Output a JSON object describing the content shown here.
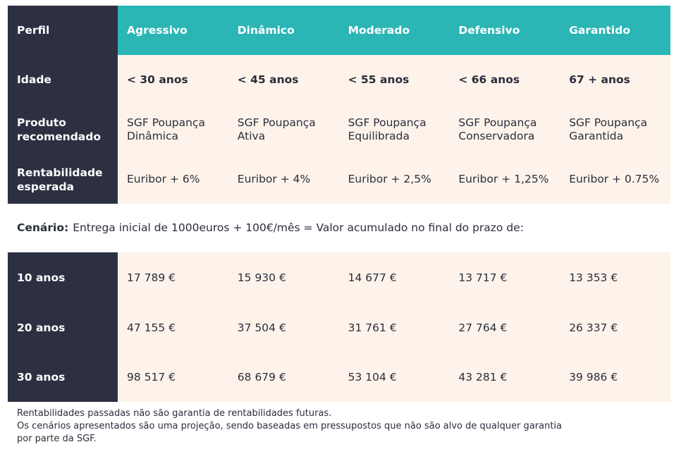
{
  "header": {
    "perfil": "Perfil",
    "profiles": [
      "Agressivo",
      "Dinâmico",
      "Moderado",
      "Defensivo",
      "Garantido"
    ]
  },
  "idade": {
    "label": "Idade",
    "values": [
      "< 30 anos",
      "< 45 anos",
      "< 55 anos",
      "< 66 anos",
      "67 + anos"
    ]
  },
  "produto": {
    "label_line1": "Produto",
    "label_line2": "recomendado",
    "values": [
      [
        "SGF Poupança",
        "Dinâmica"
      ],
      [
        "SGF Poupança",
        "Ativa"
      ],
      [
        "SGF Poupança",
        "Equilibrada"
      ],
      [
        "SGF Poupança",
        "Conservadora"
      ],
      [
        "SGF Poupança",
        "Garantida"
      ]
    ]
  },
  "rentabilidade": {
    "label_line1": "Rentabilidade",
    "label_line2": "esperada",
    "values": [
      "Euribor + 6%",
      "Euribor + 4%",
      "Euribor + 2,5%",
      "Euribor + 1,25%",
      "Euribor + 0.75%"
    ]
  },
  "scenario": {
    "label": "Cenário:",
    "text": "Entrega inicial de 1000euros + 100€/mês = Valor acumulado no final do prazo de:"
  },
  "projections": [
    {
      "label": "10 anos",
      "values": [
        "17 789 €",
        "15 930 €",
        "14 677 €",
        "13 717 €",
        "13 353 €"
      ]
    },
    {
      "label": "20 anos",
      "values": [
        "47 155 €",
        "37 504 €",
        "31 761 €",
        "27 764 €",
        "26 337 €"
      ]
    },
    {
      "label": "30 anos",
      "values": [
        "98 517 €",
        "68 679 €",
        "53 104 €",
        "43 281 €",
        "39 986 €"
      ]
    }
  ],
  "notes": [
    "Rentabilidades passadas não são garantia de rentabilidades futuras.",
    "Os cenários apresentados são uma projeção, sendo baseadas em pressupostos que não são alvo de qualquer garantia",
    "por parte da SGF."
  ],
  "colors": {
    "teal": "#2cb5b5",
    "navy": "#2c3041",
    "cream": "#fdf3ea"
  }
}
